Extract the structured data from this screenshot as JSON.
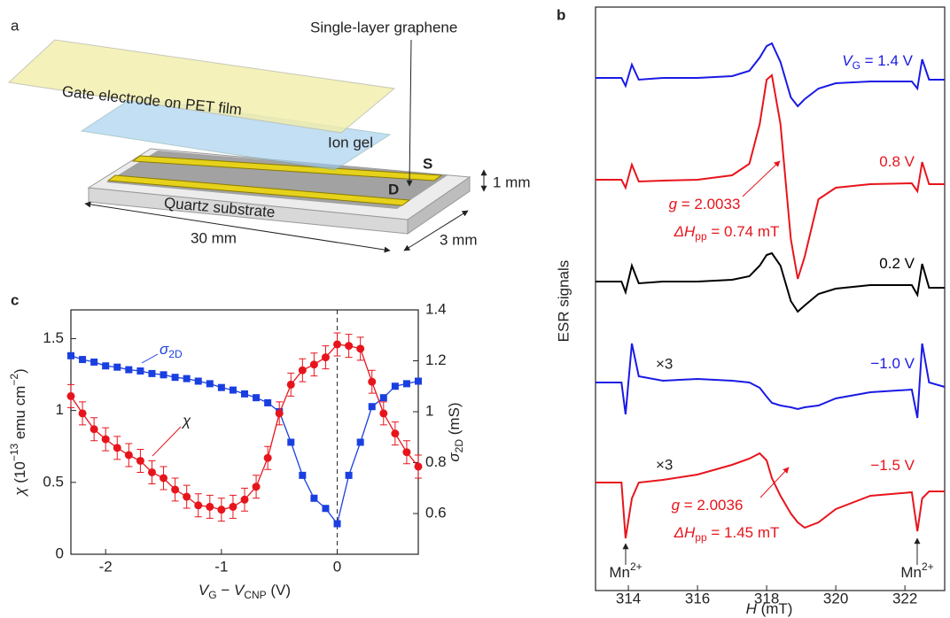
{
  "diagram": {
    "panel_label": "a",
    "labels": {
      "graphene": "Single-layer graphene",
      "gate": "Gate electrode on PET film",
      "gel": "Ion gel",
      "source": "S",
      "drain": "D",
      "thickness": "1 mm",
      "substrate": "Quartz substrate",
      "length": "30 mm",
      "width": "3 mm"
    }
  },
  "chart_data": [
    {
      "type": "line",
      "panel_label": "b",
      "y_label": "ESR signals",
      "x_label": [
        "H",
        " (mT)"
      ],
      "xlim": [
        313.05,
        323.15
      ],
      "xticks": [
        314,
        316,
        318,
        320,
        322
      ],
      "ylim": [
        21,
        680
      ],
      "x": [
        313.05,
        313.8,
        313.92,
        314.1,
        314.3,
        315,
        316,
        317,
        317.5,
        317.8,
        318.0,
        318.15,
        318.4,
        318.7,
        318.9,
        319.1,
        319.5,
        320,
        321,
        322.2,
        322.36,
        322.5,
        322.7,
        323.15
      ],
      "series": [
        {
          "label": [
            "V",
            "G",
            " = 1.4 V"
          ],
          "color": "#1a1ae6",
          "values": [
            600,
            600,
            591,
            615,
            598,
            600,
            600,
            602,
            608,
            623,
            636,
            639,
            618,
            578,
            568,
            576,
            588,
            594,
            596,
            596,
            588,
            621,
            598,
            598
          ]
        },
        {
          "label": [
            "0.8 V"
          ],
          "color": "#e8141c",
          "values": [
            485,
            485,
            476,
            502,
            483,
            484,
            485,
            490,
            503,
            548,
            598,
            603,
            548,
            418,
            373,
            398,
            463,
            476,
            480,
            481,
            472,
            505,
            480,
            480
          ]
        },
        {
          "label": [
            "0.2 V"
          ],
          "color": "#000000",
          "values": [
            370,
            370,
            358,
            388,
            368,
            370,
            370,
            372,
            376,
            388,
            400,
            402,
            388,
            348,
            336,
            343,
            356,
            362,
            366,
            366,
            355,
            390,
            363,
            363
          ]
        },
        {
          "label": [
            "−1.0 V"
          ],
          "color": "#1a1ae6",
          "values": [
            256,
            256,
            220,
            300,
            263,
            258,
            260,
            258,
            256,
            250,
            240,
            233,
            230,
            228,
            226,
            228,
            230,
            238,
            245,
            248,
            216,
            300,
            256,
            251
          ]
        },
        {
          "label": [
            "−1.5 V"
          ],
          "color": "#e8141c",
          "values": [
            143,
            143,
            80,
            125,
            143,
            146,
            152,
            163,
            170,
            176,
            168,
            148,
            128,
            108,
            98,
            92,
            98,
            113,
            128,
            132,
            88,
            125,
            133,
            133
          ]
        }
      ],
      "annotations": {
        "scale_1": "×3",
        "scale_2": "×3",
        "g_1": [
          "g",
          " = 2.0033"
        ],
        "dh_1": [
          "ΔH",
          "pp",
          " = 0.74 mT"
        ],
        "g_2": [
          "g",
          " = 2.0036"
        ],
        "dh_2": [
          "ΔH",
          "pp",
          " = 1.45 mT"
        ],
        "mn_left": [
          "Mn",
          "2+"
        ],
        "mn_right": [
          "Mn",
          "2+"
        ]
      }
    },
    {
      "type": "line",
      "panel_label": "c",
      "x_label": [
        "V",
        "G",
        " − ",
        "V",
        "CNP",
        " (V)"
      ],
      "y_label": [
        "χ",
        " (10",
        "−13",
        " emu cm",
        "−2",
        ")"
      ],
      "y2_label": [
        "σ",
        "2D",
        " (mS)"
      ],
      "xlim": [
        -2.3,
        0.7
      ],
      "xticks": [
        -2,
        -1,
        0
      ],
      "ylim": [
        0,
        1.7
      ],
      "yticks": [
        0,
        0.5,
        1,
        1.5
      ],
      "y2lim": [
        0.44,
        1.4
      ],
      "y2ticks": [
        0.6,
        0.8,
        1,
        1.2,
        1.4
      ],
      "vline": 0,
      "x": [
        -2.3,
        -2.2,
        -2.1,
        -2,
        -1.9,
        -1.8,
        -1.7,
        -1.6,
        -1.5,
        -1.4,
        -1.3,
        -1.2,
        -1.1,
        -1,
        -0.9,
        -0.8,
        -0.7,
        -0.6,
        -0.5,
        -0.4,
        -0.3,
        -0.2,
        -0.1,
        0,
        0.1,
        0.2,
        0.3,
        0.4,
        0.5,
        0.6,
        0.7
      ],
      "series": [
        {
          "name": "σ",
          "name_sub": "2D",
          "axis": "y2",
          "color": "#1a3fe0",
          "marker": "square",
          "values": [
            1.22,
            1.205,
            1.195,
            1.18,
            1.175,
            1.165,
            1.16,
            1.15,
            1.145,
            1.135,
            1.13,
            1.12,
            1.11,
            1.095,
            1.085,
            1.07,
            1.055,
            1.035,
            1.0,
            0.88,
            0.75,
            0.66,
            0.62,
            0.56,
            0.75,
            0.88,
            1.02,
            1.055,
            1.1,
            1.11,
            1.12
          ]
        },
        {
          "name": "χ",
          "axis": "y",
          "color": "#e8141c",
          "marker": "circle",
          "values": [
            1.1,
            0.98,
            0.87,
            0.8,
            0.74,
            0.69,
            0.65,
            0.57,
            0.53,
            0.45,
            0.4,
            0.34,
            0.33,
            0.31,
            0.33,
            0.38,
            0.47,
            0.67,
            0.98,
            1.18,
            1.28,
            1.32,
            1.37,
            1.46,
            1.45,
            1.43,
            1.2,
            0.98,
            0.84,
            0.71,
            0.61
          ],
          "errors": [
            0.08,
            0.08,
            0.08,
            0.08,
            0.08,
            0.08,
            0.08,
            0.08,
            0.08,
            0.08,
            0.08,
            0.08,
            0.08,
            0.08,
            0.08,
            0.08,
            0.08,
            0.08,
            0.08,
            0.08,
            0.08,
            0.08,
            0.08,
            0.08,
            0.08,
            0.08,
            0.08,
            0.08,
            0.08,
            0.08,
            0.08
          ]
        }
      ]
    }
  ]
}
